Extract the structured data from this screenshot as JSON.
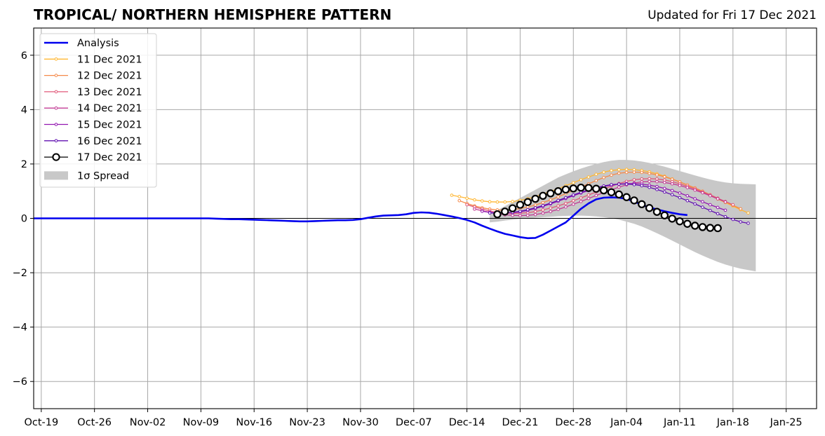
{
  "header": {
    "title": "TROPICAL/ NORTHERN HEMISPHERE PATTERN",
    "updated": "Updated for Fri 17 Dec 2021"
  },
  "chart_data": {
    "type": "line",
    "title": "TROPICAL/ NORTHERN HEMISPHERE PATTERN",
    "subtitle": "Updated for Fri 17 Dec 2021",
    "xlabel": "",
    "ylabel": "",
    "x_range": [
      "2021-10-18",
      "2022-01-29"
    ],
    "ylim": [
      -7,
      7
    ],
    "y_ticks": [
      -6,
      -4,
      -2,
      0,
      2,
      4,
      6
    ],
    "y_tick_labels": [
      "−6",
      "−4",
      "−2",
      "0",
      "2",
      "4",
      "6"
    ],
    "x_ticks": [
      "2021-10-19",
      "2021-10-26",
      "2021-11-02",
      "2021-11-09",
      "2021-11-16",
      "2021-11-23",
      "2021-11-30",
      "2021-12-07",
      "2021-12-14",
      "2021-12-21",
      "2021-12-28",
      "2022-01-04",
      "2022-01-11",
      "2022-01-18",
      "2022-01-25"
    ],
    "x_tick_labels": [
      "Oct-19",
      "Oct-26",
      "Nov-02",
      "Nov-09",
      "Nov-16",
      "Nov-23",
      "Nov-30",
      "Dec-07",
      "Dec-14",
      "Dec-21",
      "Dec-28",
      "Jan-04",
      "Jan-11",
      "Jan-18",
      "Jan-25"
    ],
    "grid": true,
    "zero_line": true,
    "legend_position": "upper-left",
    "analysis": {
      "name": "Analysis",
      "color": "#0000ee",
      "start": "2021-10-18",
      "values": [
        0,
        0,
        0,
        0,
        0,
        0,
        0,
        0,
        0,
        0,
        0,
        0,
        0,
        0,
        0,
        0,
        0,
        0,
        0,
        0,
        0,
        0,
        0,
        0,
        -0.01,
        -0.02,
        -0.03,
        -0.03,
        -0.04,
        -0.05,
        -0.06,
        -0.07,
        -0.08,
        -0.09,
        -0.1,
        -0.11,
        -0.11,
        -0.1,
        -0.09,
        -0.08,
        -0.07,
        -0.07,
        -0.06,
        -0.03,
        0.02,
        0.07,
        0.1,
        0.11,
        0.12,
        0.15,
        0.2,
        0.22,
        0.21,
        0.17,
        0.12,
        0.07,
        0.01,
        -0.06,
        -0.15,
        -0.27,
        -0.38,
        -0.48,
        -0.57,
        -0.63,
        -0.69,
        -0.73,
        -0.72,
        -0.6,
        -0.45,
        -0.3,
        -0.15,
        0.1,
        0.35,
        0.55,
        0.7,
        0.76,
        0.77,
        0.76,
        0.72,
        0.62,
        0.5,
        0.4,
        0.33,
        0.26,
        0.2,
        0.15,
        0.12
      ]
    },
    "forecasts": [
      {
        "name": "11 Dec 2021",
        "color": "#ffb733",
        "start": "2021-12-12",
        "values": [
          0.85,
          0.8,
          0.74,
          0.68,
          0.64,
          0.61,
          0.6,
          0.6,
          0.62,
          0.66,
          0.72,
          0.8,
          0.89,
          0.99,
          1.09,
          1.2,
          1.31,
          1.42,
          1.52,
          1.62,
          1.7,
          1.76,
          1.79,
          1.8,
          1.79,
          1.76,
          1.71,
          1.64,
          1.55,
          1.45,
          1.34,
          1.22,
          1.1,
          0.97,
          0.84,
          0.71,
          0.58,
          0.45,
          0.32,
          0.2
        ]
      },
      {
        "name": "12 Dec 2021",
        "color": "#f5894a",
        "start": "2021-12-13",
        "values": [
          0.65,
          0.55,
          0.46,
          0.39,
          0.34,
          0.31,
          0.3,
          0.32,
          0.36,
          0.42,
          0.49,
          0.58,
          0.68,
          0.79,
          0.91,
          1.03,
          1.15,
          1.27,
          1.39,
          1.5,
          1.59,
          1.66,
          1.69,
          1.7,
          1.69,
          1.65,
          1.6,
          1.53,
          1.44,
          1.34,
          1.23,
          1.12,
          1.0,
          0.87,
          0.74,
          0.61,
          0.48,
          0.35
        ]
      },
      {
        "name": "13 Dec 2021",
        "color": "#e05878",
        "start": "2021-12-14",
        "values": [
          0.5,
          0.42,
          0.34,
          0.27,
          0.22,
          0.19,
          0.18,
          0.19,
          0.21,
          0.25,
          0.31,
          0.38,
          0.46,
          0.55,
          0.65,
          0.75,
          0.86,
          0.97,
          1.08,
          1.18,
          1.28,
          1.36,
          1.42,
          1.45,
          1.46,
          1.45,
          1.41,
          1.35,
          1.27,
          1.18,
          1.08,
          0.97,
          0.86,
          0.74,
          0.62,
          0.5
        ]
      },
      {
        "name": "14 Dec 2021",
        "color": "#c23b95",
        "start": "2021-12-15",
        "values": [
          0.34,
          0.28,
          0.22,
          0.17,
          0.13,
          0.11,
          0.1,
          0.11,
          0.14,
          0.19,
          0.25,
          0.33,
          0.42,
          0.52,
          0.62,
          0.73,
          0.84,
          0.95,
          1.05,
          1.15,
          1.23,
          1.3,
          1.34,
          1.36,
          1.35,
          1.32,
          1.27,
          1.21,
          1.13,
          1.04,
          0.94,
          0.83,
          0.72,
          0.6
        ]
      },
      {
        "name": "15 Dec 2021",
        "color": "#9216b0",
        "start": "2021-12-16",
        "values": [
          0.26,
          0.22,
          0.2,
          0.2,
          0.21,
          0.24,
          0.29,
          0.36,
          0.44,
          0.53,
          0.63,
          0.73,
          0.83,
          0.93,
          1.02,
          1.1,
          1.17,
          1.22,
          1.26,
          1.28,
          1.28,
          1.26,
          1.22,
          1.17,
          1.1,
          1.02,
          0.93,
          0.83,
          0.72,
          0.61,
          0.5,
          0.4,
          0.3
        ]
      },
      {
        "name": "16 Dec 2021",
        "color": "#6010b0",
        "start": "2021-12-17",
        "values": [
          0.2,
          0.19,
          0.2,
          0.22,
          0.26,
          0.32,
          0.39,
          0.47,
          0.56,
          0.66,
          0.76,
          0.86,
          0.96,
          1.05,
          1.13,
          1.19,
          1.24,
          1.26,
          1.26,
          1.24,
          1.2,
          1.14,
          1.06,
          0.97,
          0.87,
          0.76,
          0.65,
          0.53,
          0.41,
          0.29,
          0.17,
          0.06,
          -0.04,
          -0.13,
          -0.18
        ]
      },
      {
        "name": "17 Dec 2021",
        "color": "#000000",
        "start": "2021-12-18",
        "values": [
          0.15,
          0.25,
          0.37,
          0.5,
          0.6,
          0.72,
          0.83,
          0.92,
          1.0,
          1.06,
          1.1,
          1.13,
          1.12,
          1.09,
          1.03,
          0.96,
          0.88,
          0.78,
          0.66,
          0.52,
          0.38,
          0.24,
          0.11,
          -0.01,
          -0.11,
          -0.2,
          -0.27,
          -0.32,
          -0.35,
          -0.36
        ]
      }
    ],
    "spread": {
      "name": "1σ Spread",
      "color": "#c8c8c8",
      "start": "2021-12-17",
      "upper": [
        0.15,
        0.3,
        0.45,
        0.6,
        0.75,
        0.9,
        1.05,
        1.2,
        1.35,
        1.5,
        1.62,
        1.73,
        1.83,
        1.92,
        2.0,
        2.07,
        2.12,
        2.15,
        2.15,
        2.13,
        2.09,
        2.04,
        1.97,
        1.9,
        1.82,
        1.74,
        1.66,
        1.58,
        1.5,
        1.43,
        1.37,
        1.32,
        1.29,
        1.27,
        1.26,
        1.25
      ],
      "lower": [
        -0.15,
        -0.12,
        -0.08,
        -0.05,
        -0.02,
        0.0,
        0.02,
        0.04,
        0.06,
        0.08,
        0.09,
        0.1,
        0.1,
        0.09,
        0.07,
        0.04,
        0.0,
        -0.05,
        -0.12,
        -0.2,
        -0.3,
        -0.42,
        -0.55,
        -0.68,
        -0.82,
        -0.96,
        -1.1,
        -1.24,
        -1.37,
        -1.49,
        -1.6,
        -1.7,
        -1.78,
        -1.85,
        -1.9,
        -1.95
      ]
    }
  }
}
